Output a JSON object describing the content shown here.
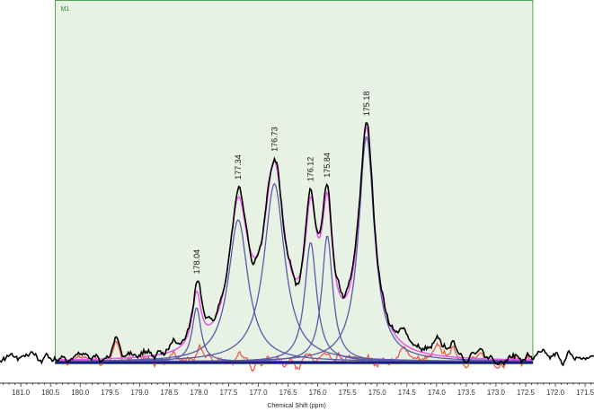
{
  "chart_data": {
    "type": "line",
    "title": "",
    "xlabel": "Chemical Shift (ppm)",
    "ylabel": "",
    "xlim": [
      181.35,
      171.35
    ],
    "ylim": [
      -0.1,
      1.18
    ],
    "x_reversed": true,
    "grid": false,
    "region": {
      "label": "M1",
      "x_range": [
        180.42,
        172.38
      ]
    },
    "x_ticks": [
      "181.0",
      "180.5",
      "180.0",
      "179.5",
      "179.0",
      "178.5",
      "178.0",
      "177.5",
      "177.0",
      "176.5",
      "176.0",
      "175.5",
      "175.0",
      "174.5",
      "174.0",
      "173.5",
      "173.0",
      "172.5",
      "172.0",
      "171.5"
    ],
    "peak_labels": [
      "178.04",
      "177.34",
      "176.73",
      "176.12",
      "175.84",
      "175.18"
    ],
    "peaks": [
      {
        "position": 178.04,
        "height": 0.24,
        "width": 0.09
      },
      {
        "position": 177.34,
        "height": 0.63,
        "width": 0.2
      },
      {
        "position": 176.73,
        "height": 0.79,
        "width": 0.21
      },
      {
        "position": 176.12,
        "height": 0.53,
        "width": 0.12
      },
      {
        "position": 175.84,
        "height": 0.56,
        "width": 0.11
      },
      {
        "position": 175.18,
        "height": 1.0,
        "width": 0.16
      }
    ],
    "series": [
      {
        "role": "experimental",
        "color": "#000000"
      },
      {
        "role": "fit-sum",
        "color": "#ee55ee"
      },
      {
        "role": "components",
        "color": "#5a5aa6"
      },
      {
        "role": "residual",
        "color": "#ee5a48"
      },
      {
        "role": "baseline",
        "color": "#1a1a8c"
      }
    ]
  }
}
